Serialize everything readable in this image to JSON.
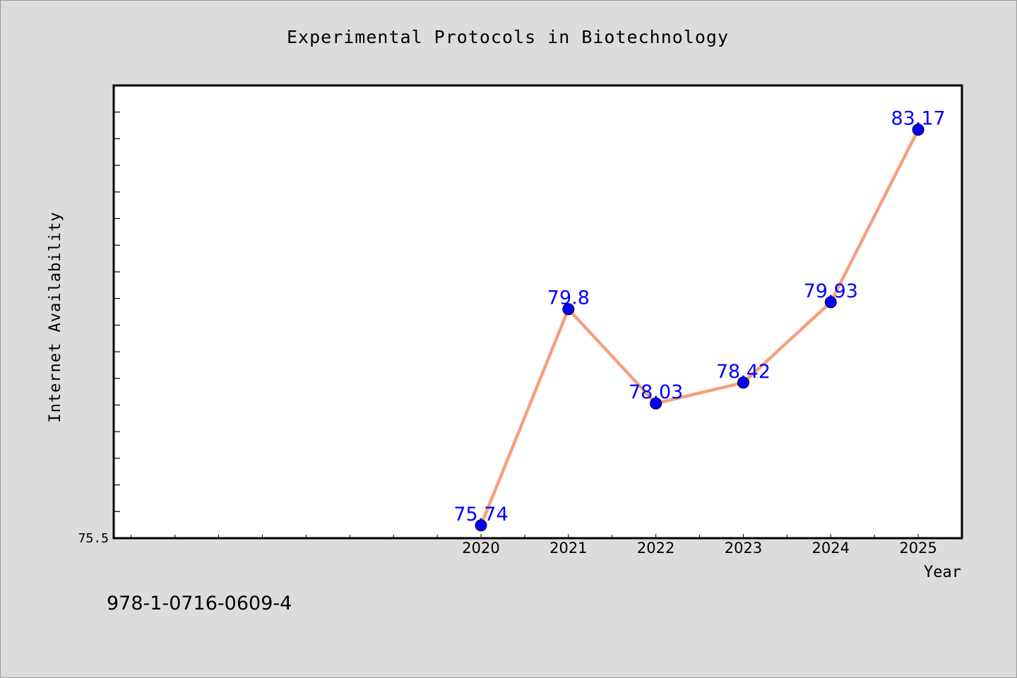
{
  "colors": {
    "background": "#dcdcdc",
    "plot_background": "#ffffff",
    "line": "#f4a07f",
    "marker": "#0000ff",
    "data_label": "#0000ff",
    "text": "#000000"
  },
  "chart_data": {
    "type": "line",
    "title": "Experimental Protocols in Biotechnology",
    "xlabel": "Year",
    "ylabel": "Internet Availability",
    "x": [
      2020,
      2021,
      2022,
      2023,
      2024,
      2025
    ],
    "x_tick_labels": [
      "2020",
      "2021",
      "2022",
      "2023",
      "2024",
      "2025"
    ],
    "xlim": [
      2015.8,
      2025.5
    ],
    "ylim": [
      75.5,
      84.0
    ],
    "y_tick_labels": [
      "75.5"
    ],
    "series": [
      {
        "values": [
          75.74,
          79.8,
          78.03,
          78.42,
          79.93,
          83.17
        ],
        "data_labels": [
          "75.74",
          "79.8",
          "78.03",
          "78.42",
          "79.93",
          "83.17"
        ]
      }
    ],
    "grid": false,
    "legend": "none"
  },
  "footer": {
    "isbn": "978-1-0716-0609-4"
  }
}
